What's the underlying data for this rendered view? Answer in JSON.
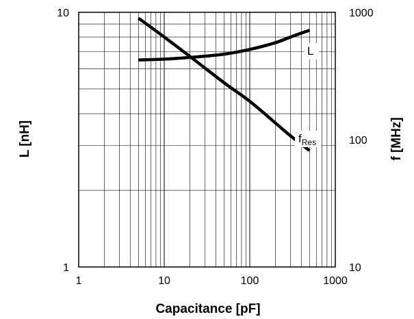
{
  "chart_data": {
    "type": "line",
    "xlabel": "Capacitance [pF]",
    "ylabel_left": "L [nH]",
    "ylabel_right": "f [MHz]",
    "x_scale": "log",
    "y_left_scale": "log",
    "y_right_scale": "log",
    "xlim": [
      1,
      1000
    ],
    "ylim_left": [
      1,
      10
    ],
    "ylim_right": [
      10,
      1000
    ],
    "x_ticks": [
      "1",
      "10",
      "100",
      "1000"
    ],
    "y_left_ticks": [
      "1",
      "10"
    ],
    "y_right_ticks": [
      "10",
      "100",
      "1000"
    ],
    "grid": true,
    "series": [
      {
        "name": "L",
        "axis": "left",
        "label_main": "L",
        "label_sub": "",
        "x": [
          5,
          10,
          20,
          50,
          100,
          200,
          300,
          500
        ],
        "y": [
          6.5,
          6.55,
          6.65,
          6.85,
          7.15,
          7.6,
          8.0,
          8.5
        ]
      },
      {
        "name": "fRes",
        "axis": "right",
        "label_main": "f",
        "label_sub": "Res",
        "x": [
          5,
          10,
          20,
          50,
          100,
          200,
          300,
          500
        ],
        "y": [
          900,
          640,
          450,
          280,
          200,
          135,
          107,
          82
        ]
      }
    ]
  }
}
